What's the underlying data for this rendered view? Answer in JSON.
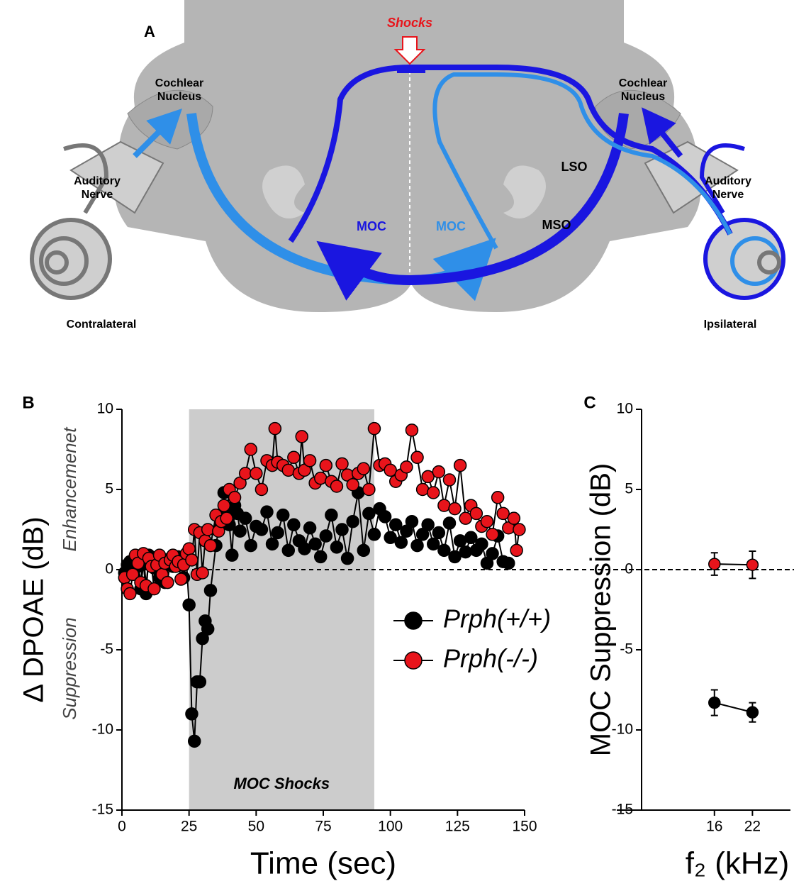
{
  "panel_a": {
    "label": "A",
    "shocks": "Shocks",
    "cochlear_nucleus_left": [
      "Cochlear",
      "Nucleus"
    ],
    "cochlear_nucleus_right": [
      "Cochlear",
      "Nucleus"
    ],
    "auditory_nerve_left": [
      "Auditory",
      "Nerve"
    ],
    "auditory_nerve_right": [
      "Auditory",
      "Nerve"
    ],
    "contralateral": "Contralateral",
    "ipsilateral": "Ipsilateral",
    "lso": "LSO",
    "mso": "MSO",
    "moc_left": "MOC",
    "moc_right": "MOC"
  },
  "chart_data": [
    {
      "type": "line",
      "panel_label": "B",
      "xlabel": "Time (sec)",
      "ylabel": "Δ DPOAE (dB)",
      "annotations": [
        "Enhancemenet",
        "Suppression"
      ],
      "shaded_region": {
        "x": [
          25,
          94
        ],
        "label": "MOC Shocks",
        "color": "#cccccc"
      },
      "reference_line": 0,
      "xlim": [
        0,
        150
      ],
      "ylim": [
        -15,
        10
      ],
      "xticks": [
        0,
        25,
        50,
        75,
        100,
        125,
        150
      ],
      "yticks": [
        -15,
        -10,
        -5,
        0,
        5,
        10
      ],
      "legend": "lower right",
      "series": [
        {
          "name": "Prph(+/+)",
          "color": "#000000",
          "x": [
            1,
            2,
            3,
            4,
            5,
            6,
            7,
            8,
            9,
            10,
            11,
            12,
            13,
            14,
            15,
            16,
            17,
            18,
            19,
            20,
            21,
            22,
            23,
            24,
            25,
            26,
            27,
            28,
            29,
            30,
            31,
            32,
            33,
            35,
            36,
            37,
            38,
            39,
            40,
            41,
            42,
            43,
            44,
            46,
            48,
            50,
            52,
            54,
            56,
            58,
            60,
            62,
            64,
            66,
            68,
            70,
            72,
            74,
            76,
            78,
            80,
            82,
            84,
            86,
            88,
            90,
            92,
            94,
            96,
            98,
            100,
            102,
            104,
            106,
            108,
            110,
            112,
            114,
            116,
            118,
            120,
            122,
            124,
            126,
            128,
            130,
            132,
            134,
            136,
            138,
            140,
            142,
            144
          ],
          "values": [
            -0.2,
            0.3,
            0.5,
            -0.3,
            0.8,
            0.2,
            -1.2,
            0.4,
            -1.5,
            0.9,
            0.3,
            0.1,
            0.5,
            -0.5,
            0.6,
            -0.8,
            0.3,
            0.7,
            0.2,
            0.5,
            0.8,
            0.3,
            -0.5,
            0.6,
            -2.2,
            -9.0,
            -10.7,
            -7.0,
            -7.0,
            -4.3,
            -3.2,
            -3.7,
            -1.3,
            1.5,
            2.5,
            3.0,
            4.8,
            3.5,
            2.8,
            0.9,
            4.0,
            3.5,
            2.4,
            3.2,
            1.5,
            2.7,
            2.5,
            3.6,
            1.6,
            2.3,
            3.4,
            1.2,
            2.8,
            1.8,
            1.3,
            2.6,
            1.6,
            0.8,
            2.1,
            3.4,
            1.4,
            2.5,
            0.7,
            3.0,
            4.8,
            1.2,
            3.5,
            2.2,
            3.8,
            3.3,
            2.0,
            2.8,
            1.7,
            2.4,
            3.0,
            1.5,
            2.2,
            2.8,
            1.6,
            2.3,
            1.2,
            2.9,
            0.8,
            1.8,
            1.1,
            2.0,
            1.2,
            1.6,
            0.4,
            1.0,
            2.1,
            0.5,
            0.4
          ]
        },
        {
          "name": "Prph(-/-)",
          "color": "#e8141b",
          "x": [
            1,
            2,
            3,
            4,
            5,
            6,
            7,
            8,
            9,
            10,
            11,
            12,
            13,
            14,
            15,
            16,
            17,
            18,
            19,
            20,
            21,
            22,
            23,
            24,
            25,
            26,
            27,
            28,
            29,
            30,
            31,
            32,
            33,
            35,
            36,
            37,
            38,
            39,
            40,
            42,
            44,
            46,
            48,
            50,
            52,
            54,
            56,
            57,
            58,
            60,
            62,
            64,
            66,
            67,
            68,
            70,
            72,
            74,
            76,
            78,
            80,
            82,
            84,
            86,
            88,
            90,
            92,
            94,
            96,
            98,
            100,
            102,
            104,
            106,
            108,
            110,
            112,
            114,
            116,
            118,
            120,
            122,
            124,
            126,
            128,
            130,
            132,
            134,
            136,
            138,
            140,
            142,
            144,
            146,
            147,
            148
          ],
          "values": [
            -0.5,
            -1.2,
            -1.5,
            -0.3,
            0.9,
            0.4,
            -0.8,
            1.0,
            -1.0,
            0.7,
            0.2,
            -1.2,
            0.3,
            0.9,
            -0.3,
            0.4,
            -0.8,
            0.6,
            0.9,
            0.2,
            0.5,
            -0.6,
            0.3,
            1.0,
            1.3,
            0.6,
            2.5,
            -0.3,
            2.3,
            -0.2,
            1.8,
            2.5,
            1.5,
            3.4,
            2.4,
            3.0,
            4.0,
            3.2,
            5.0,
            4.5,
            5.4,
            6.0,
            7.5,
            6.0,
            5.0,
            6.8,
            6.5,
            8.8,
            6.7,
            6.5,
            6.2,
            7.0,
            6.0,
            8.3,
            6.2,
            6.8,
            5.4,
            5.7,
            6.5,
            5.5,
            5.2,
            6.6,
            5.9,
            5.3,
            6.0,
            6.3,
            5.0,
            8.8,
            6.5,
            6.6,
            6.2,
            5.5,
            5.9,
            6.4,
            8.7,
            7.0,
            5.0,
            5.8,
            4.8,
            6.1,
            4.0,
            5.6,
            3.8,
            6.5,
            3.2,
            4.0,
            3.5,
            2.7,
            3.0,
            2.2,
            4.5,
            3.5,
            2.6,
            3.2,
            1.2,
            2.5
          ]
        }
      ]
    },
    {
      "type": "line",
      "panel_label": "C",
      "xlabel": "f₂ (kHz)",
      "ylabel": "MOC Suppression (dB)",
      "reference_line": 0,
      "xlim": [
        4.5,
        28
      ],
      "ylim": [
        -15,
        10
      ],
      "xticks": [
        16,
        22
      ],
      "yticks": [
        -15,
        -10,
        -5,
        0,
        5,
        10
      ],
      "series": [
        {
          "name": "Prph(+/+)",
          "color": "#000000",
          "x": [
            16,
            22
          ],
          "values": [
            -8.3,
            -8.9
          ],
          "errors": [
            0.8,
            0.6
          ]
        },
        {
          "name": "Prph(-/-)",
          "color": "#e8141b",
          "x": [
            16,
            22
          ],
          "values": [
            0.35,
            0.3
          ],
          "errors": [
            0.7,
            0.85
          ]
        }
      ]
    }
  ]
}
